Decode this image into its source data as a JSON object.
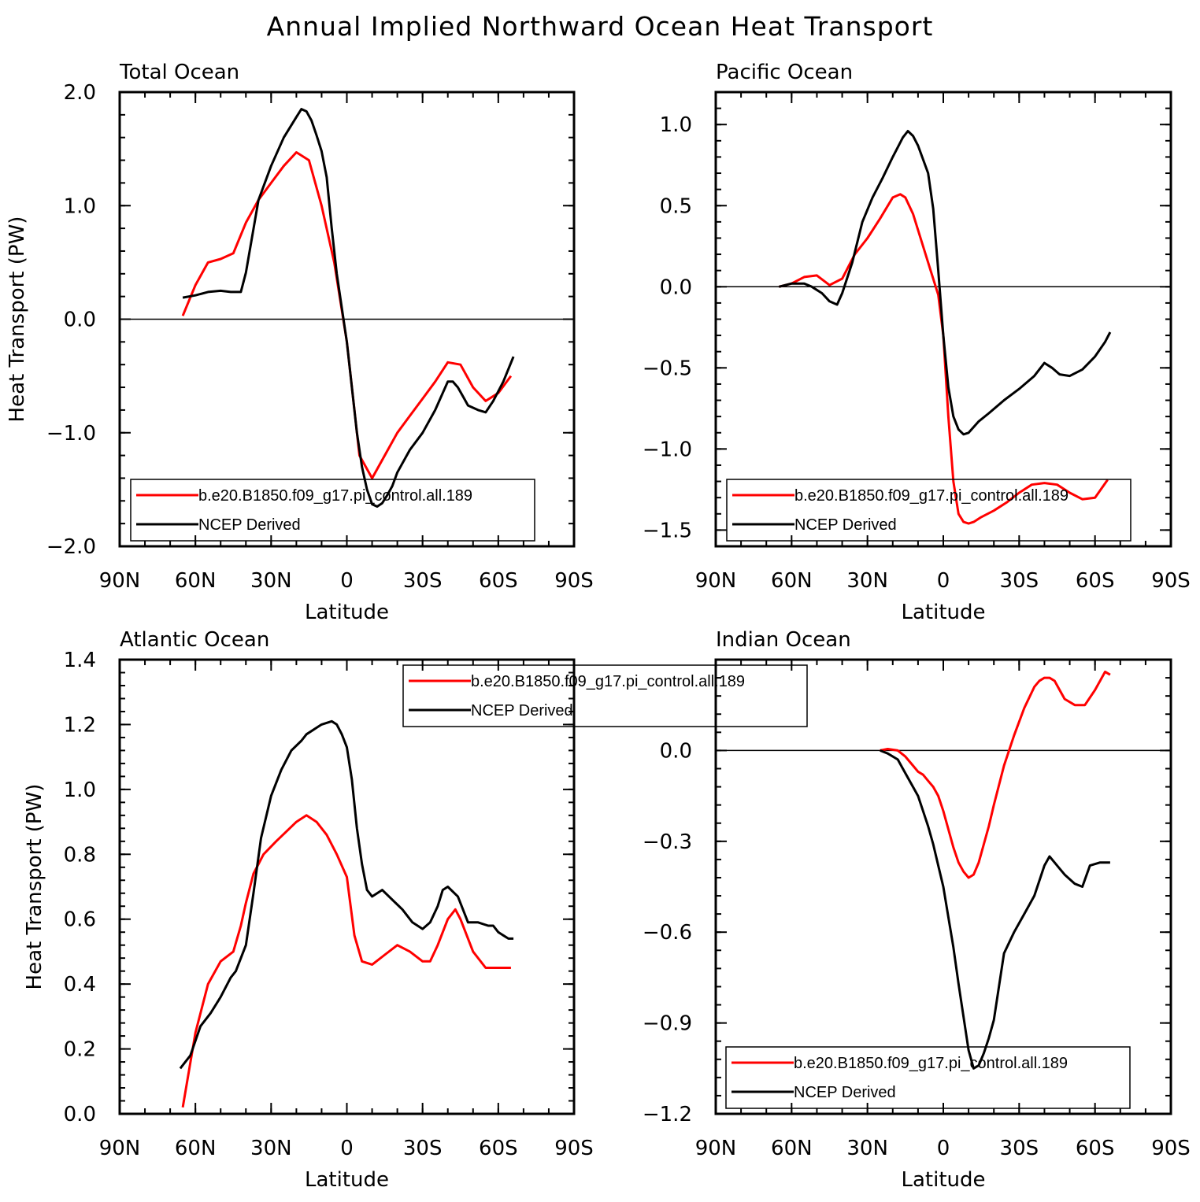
{
  "figure": {
    "title": "Annual Implied Northward Ocean Heat Transport"
  },
  "colors": {
    "model": "#ff0000",
    "obs": "#000000"
  },
  "chart_data": [
    {
      "type": "line",
      "title": "Total Ocean",
      "xlabel": "Latitude",
      "ylabel": "Heat Transport (PW)",
      "xlim": [
        90,
        -90
      ],
      "xticks": [
        90,
        60,
        30,
        0,
        -30,
        -60,
        -90
      ],
      "xticklabels": [
        "90N",
        "60N",
        "30N",
        "0",
        "30S",
        "60S",
        "90S"
      ],
      "ylim": [
        -2.0,
        2.0
      ],
      "yticks": [
        -2.0,
        -1.0,
        0.0,
        1.0,
        2.0
      ],
      "yticklabels": [
        "−2.0",
        "−1.0",
        "0.0",
        "1.0",
        "2.0"
      ],
      "zero_line": true,
      "legend": {
        "position": "bottom"
      },
      "series": [
        {
          "name": "b.e20.B1850.f09_g17.pi_control.all.189",
          "color": "#ff0000",
          "x": [
            65,
            60,
            55,
            50,
            45,
            40,
            35,
            30,
            25,
            20,
            15,
            10,
            5,
            0,
            -5,
            -10,
            -15,
            -20,
            -25,
            -30,
            -35,
            -40,
            -45,
            -50,
            -55,
            -60,
            -65
          ],
          "y": [
            0.03,
            0.3,
            0.5,
            0.53,
            0.58,
            0.85,
            1.05,
            1.2,
            1.35,
            1.47,
            1.4,
            1.0,
            0.5,
            -0.2,
            -1.2,
            -1.4,
            -1.2,
            -1.0,
            -0.85,
            -0.7,
            -0.55,
            -0.38,
            -0.4,
            -0.6,
            -0.72,
            -0.65,
            -0.5
          ]
        },
        {
          "name": "NCEP Derived",
          "color": "#000000",
          "x": [
            65,
            60,
            55,
            50,
            46,
            42,
            40,
            35,
            30,
            25,
            20,
            18,
            16,
            14,
            12,
            10,
            8,
            6,
            4,
            2,
            0,
            -2,
            -4,
            -6,
            -8,
            -10,
            -12,
            -14,
            -16,
            -18,
            -20,
            -25,
            -30,
            -35,
            -40,
            -42,
            -44,
            -46,
            -48,
            -52,
            -55,
            -58,
            -62,
            -66
          ],
          "y": [
            0.19,
            0.21,
            0.24,
            0.25,
            0.24,
            0.24,
            0.41,
            1.05,
            1.35,
            1.6,
            1.78,
            1.85,
            1.83,
            1.75,
            1.62,
            1.48,
            1.25,
            0.8,
            0.4,
            0.1,
            -0.2,
            -0.6,
            -1.0,
            -1.3,
            -1.5,
            -1.63,
            -1.65,
            -1.62,
            -1.55,
            -1.47,
            -1.35,
            -1.15,
            -1.0,
            -0.8,
            -0.55,
            -0.55,
            -0.6,
            -0.68,
            -0.76,
            -0.8,
            -0.82,
            -0.72,
            -0.55,
            -0.33
          ]
        }
      ]
    },
    {
      "type": "line",
      "title": "Pacific Ocean",
      "xlabel": "Latitude",
      "ylabel": "",
      "xlim": [
        90,
        -90
      ],
      "xticks": [
        90,
        60,
        30,
        0,
        -30,
        -60,
        -90
      ],
      "xticklabels": [
        "90N",
        "60N",
        "30N",
        "0",
        "30S",
        "60S",
        "90S"
      ],
      "ylim": [
        -1.6,
        1.2
      ],
      "yticks": [
        -1.5,
        -1.0,
        -0.5,
        0.0,
        0.5,
        1.0
      ],
      "yticklabels": [
        "−1.5",
        "−1.0",
        "−0.5",
        "0.0",
        "0.5",
        "1.0"
      ],
      "zero_line": true,
      "legend": {
        "position": "bottom"
      },
      "series": [
        {
          "name": "b.e20.B1850.f09_g17.pi_control.all.189",
          "color": "#ff0000",
          "x": [
            65,
            60,
            55,
            50,
            45,
            40,
            35,
            30,
            25,
            20,
            17,
            15,
            12,
            10,
            5,
            2,
            0,
            -2,
            -4,
            -6,
            -8,
            -10,
            -12,
            -15,
            -20,
            -25,
            -30,
            -35,
            -40,
            -45,
            -50,
            -55,
            -60,
            -65
          ],
          "y": [
            0.0,
            0.02,
            0.06,
            0.07,
            0.01,
            0.05,
            0.2,
            0.3,
            0.42,
            0.55,
            0.57,
            0.55,
            0.45,
            0.35,
            0.1,
            -0.05,
            -0.3,
            -0.8,
            -1.2,
            -1.4,
            -1.45,
            -1.46,
            -1.45,
            -1.42,
            -1.38,
            -1.33,
            -1.27,
            -1.22,
            -1.21,
            -1.22,
            -1.27,
            -1.31,
            -1.3,
            -1.19
          ]
        },
        {
          "name": "NCEP Derived",
          "color": "#000000",
          "x": [
            65,
            60,
            55,
            52,
            48,
            45,
            42,
            40,
            36,
            32,
            28,
            24,
            20,
            16,
            14,
            12,
            10,
            6,
            4,
            2,
            0,
            -2,
            -4,
            -6,
            -8,
            -10,
            -14,
            -18,
            -24,
            -30,
            -36,
            -40,
            -43,
            -46,
            -50,
            -55,
            -60,
            -64,
            -66
          ],
          "y": [
            0.0,
            0.02,
            0.02,
            0.0,
            -0.04,
            -0.09,
            -0.11,
            -0.04,
            0.15,
            0.4,
            0.55,
            0.67,
            0.8,
            0.92,
            0.96,
            0.93,
            0.87,
            0.7,
            0.48,
            0.1,
            -0.3,
            -0.62,
            -0.8,
            -0.88,
            -0.91,
            -0.9,
            -0.83,
            -0.78,
            -0.7,
            -0.63,
            -0.55,
            -0.47,
            -0.5,
            -0.54,
            -0.55,
            -0.51,
            -0.43,
            -0.34,
            -0.28
          ]
        }
      ]
    },
    {
      "type": "line",
      "title": "Atlantic Ocean",
      "xlabel": "Latitude",
      "ylabel": "Heat Transport (PW)",
      "xlim": [
        90,
        -90
      ],
      "xticks": [
        90,
        60,
        30,
        0,
        -30,
        -60,
        -90
      ],
      "xticklabels": [
        "90N",
        "60N",
        "30N",
        "0",
        "30S",
        "60S",
        "90S"
      ],
      "ylim": [
        0.0,
        1.4
      ],
      "yticks": [
        0.0,
        0.2,
        0.4,
        0.6,
        0.8,
        1.0,
        1.2,
        1.4
      ],
      "yticklabels": [
        "0.0",
        "0.2",
        "0.4",
        "0.6",
        "0.8",
        "1.0",
        "1.2",
        "1.4"
      ],
      "zero_line": false,
      "legend": {
        "position": "top-center"
      },
      "series": [
        {
          "name": "b.e20.B1850.f09_g17.pi_control.all.189",
          "color": "#ff0000",
          "x": [
            65,
            60,
            55,
            50,
            45,
            42,
            40,
            37,
            33,
            28,
            24,
            20,
            16,
            12,
            8,
            4,
            0,
            -3,
            -6,
            -10,
            -15,
            -20,
            -25,
            -30,
            -33,
            -36,
            -40,
            -43,
            -45,
            -50,
            -55,
            -60,
            -65
          ],
          "y": [
            0.02,
            0.25,
            0.4,
            0.47,
            0.5,
            0.58,
            0.65,
            0.74,
            0.8,
            0.84,
            0.87,
            0.9,
            0.92,
            0.9,
            0.86,
            0.8,
            0.73,
            0.55,
            0.47,
            0.46,
            0.49,
            0.52,
            0.5,
            0.47,
            0.47,
            0.52,
            0.6,
            0.63,
            0.6,
            0.5,
            0.45,
            0.45,
            0.45
          ]
        },
        {
          "name": "NCEP Derived",
          "color": "#000000",
          "x": [
            66,
            62,
            58,
            54,
            50,
            46,
            44,
            40,
            37,
            34,
            30,
            26,
            22,
            18,
            16,
            14,
            12,
            10,
            6,
            4,
            2,
            0,
            -2,
            -4,
            -6,
            -8,
            -10,
            -14,
            -18,
            -22,
            -26,
            -30,
            -33,
            -36,
            -38,
            -40,
            -44,
            -48,
            -52,
            -56,
            -58,
            -60,
            -62,
            -64,
            -66
          ],
          "y": [
            0.14,
            0.18,
            0.27,
            0.31,
            0.36,
            0.42,
            0.44,
            0.52,
            0.68,
            0.85,
            0.98,
            1.06,
            1.12,
            1.15,
            1.17,
            1.18,
            1.19,
            1.2,
            1.21,
            1.2,
            1.17,
            1.13,
            1.03,
            0.88,
            0.77,
            0.69,
            0.67,
            0.69,
            0.66,
            0.63,
            0.59,
            0.57,
            0.59,
            0.64,
            0.69,
            0.7,
            0.67,
            0.59,
            0.59,
            0.58,
            0.58,
            0.56,
            0.55,
            0.54,
            0.54
          ]
        }
      ]
    },
    {
      "type": "line",
      "title": "Indian Ocean",
      "xlabel": "Latitude",
      "ylabel": "",
      "xlim": [
        90,
        -90
      ],
      "xticks": [
        90,
        60,
        30,
        0,
        -30,
        -60,
        -90
      ],
      "xticklabels": [
        "90N",
        "60N",
        "30N",
        "0",
        "30S",
        "60S",
        "90S"
      ],
      "ylim": [
        -1.2,
        0.3
      ],
      "yticks": [
        -1.2,
        -0.9,
        -0.6,
        -0.3,
        0.0
      ],
      "yticklabels": [
        "−1.2",
        "−0.9",
        "−0.6",
        "−0.3",
        "0.0"
      ],
      "zero_line": true,
      "legend": {
        "position": "bottom"
      },
      "series": [
        {
          "name": "b.e20.B1850.f09_g17.pi_control.all.189",
          "color": "#ff0000",
          "x": [
            25,
            22,
            18,
            15,
            12,
            10,
            8,
            6,
            4,
            2,
            0,
            -2,
            -4,
            -6,
            -8,
            -10,
            -12,
            -14,
            -16,
            -18,
            -20,
            -24,
            -28,
            -32,
            -36,
            -38,
            -40,
            -42,
            -44,
            -46,
            -48,
            -52,
            -56,
            -60,
            -64,
            -66
          ],
          "y": [
            0.0,
            0.005,
            0.0,
            -0.02,
            -0.05,
            -0.07,
            -0.08,
            -0.1,
            -0.12,
            -0.15,
            -0.2,
            -0.26,
            -0.32,
            -0.37,
            -0.4,
            -0.42,
            -0.41,
            -0.37,
            -0.31,
            -0.25,
            -0.18,
            -0.05,
            0.05,
            0.14,
            0.21,
            0.23,
            0.24,
            0.24,
            0.23,
            0.2,
            0.17,
            0.15,
            0.15,
            0.2,
            0.26,
            0.25
          ]
        },
        {
          "name": "NCEP Derived",
          "color": "#000000",
          "x": [
            25,
            22,
            18,
            16,
            14,
            12,
            10,
            8,
            6,
            4,
            2,
            0,
            -2,
            -4,
            -6,
            -8,
            -10,
            -12,
            -14,
            -16,
            -18,
            -20,
            -24,
            -28,
            -32,
            -36,
            -40,
            -42,
            -44,
            -46,
            -48,
            -52,
            -55,
            -58,
            -62,
            -66
          ],
          "y": [
            0.0,
            -0.01,
            -0.03,
            -0.06,
            -0.09,
            -0.12,
            -0.15,
            -0.2,
            -0.25,
            -0.31,
            -0.38,
            -0.45,
            -0.55,
            -0.65,
            -0.77,
            -0.88,
            -0.99,
            -1.05,
            -1.04,
            -1.0,
            -0.95,
            -0.89,
            -0.67,
            -0.6,
            -0.54,
            -0.48,
            -0.38,
            -0.35,
            -0.37,
            -0.39,
            -0.41,
            -0.44,
            -0.45,
            -0.38,
            -0.37,
            -0.37
          ]
        }
      ]
    }
  ]
}
